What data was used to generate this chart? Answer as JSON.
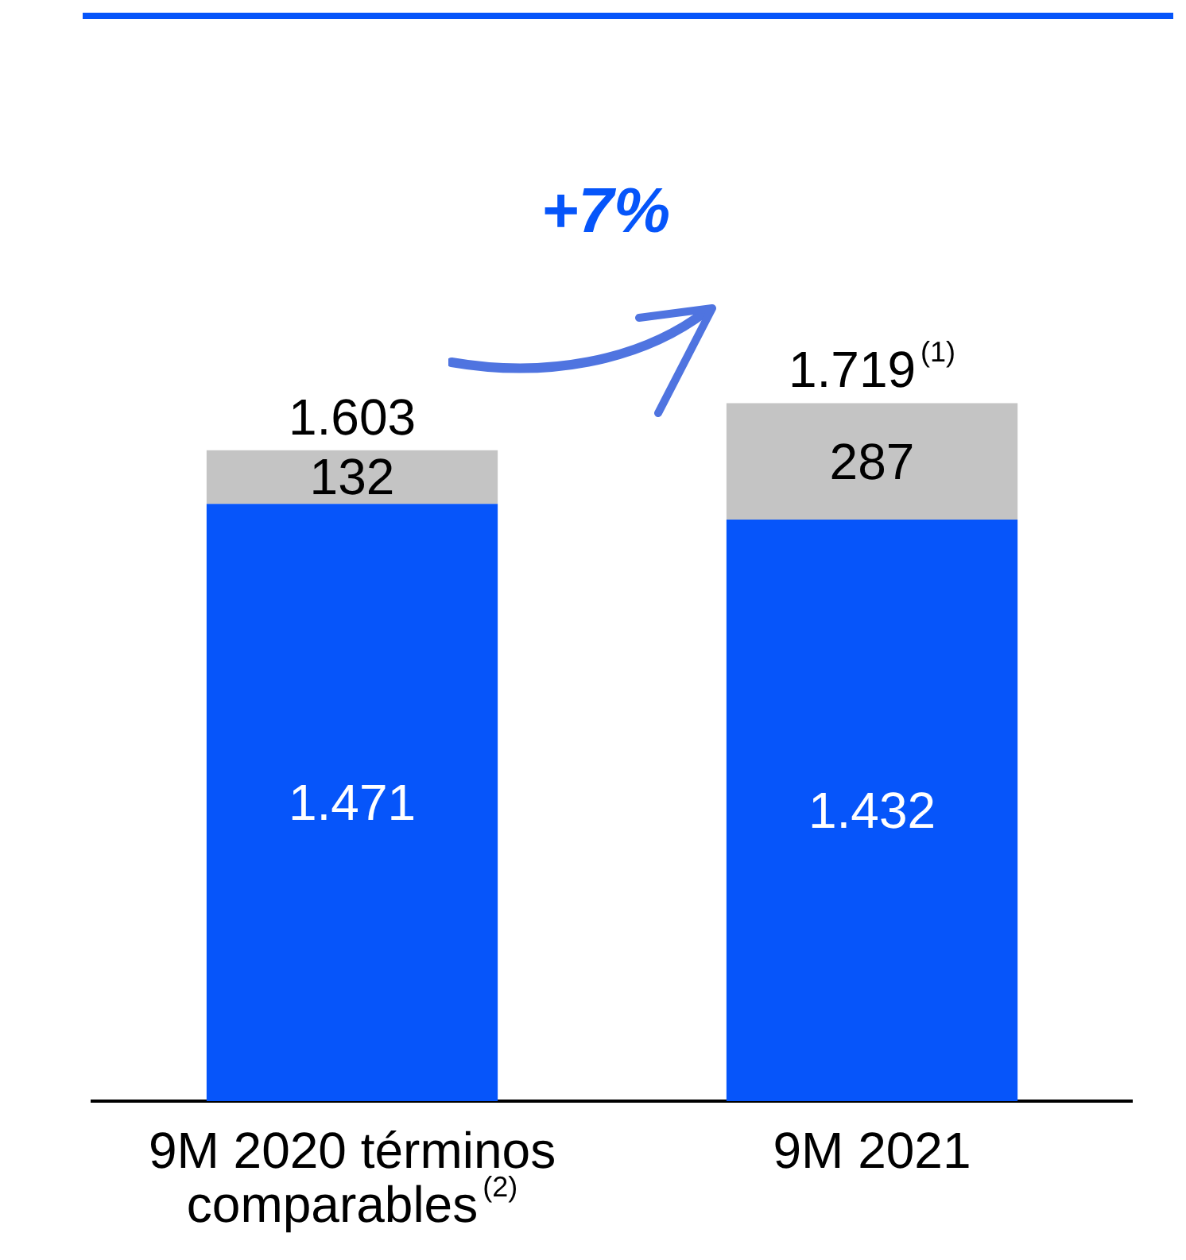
{
  "chart_data": {
    "type": "bar",
    "stacked": true,
    "categories": [
      "9M 2020 términos comparables$^{(2)}$",
      "9M 2021"
    ],
    "series": [
      {
        "color": "#0655fa",
        "values": [
          1471,
          1432
        ],
        "value_labels": [
          "1.471",
          "1.432"
        ]
      },
      {
        "color": "#c4c4c4",
        "values": [
          132,
          287
        ],
        "value_labels": [
          "132",
          "287"
        ]
      }
    ],
    "totals": [
      "1.603",
      "1.719$^{(1)}$"
    ],
    "annotations": [
      "+7%"
    ]
  }
}
